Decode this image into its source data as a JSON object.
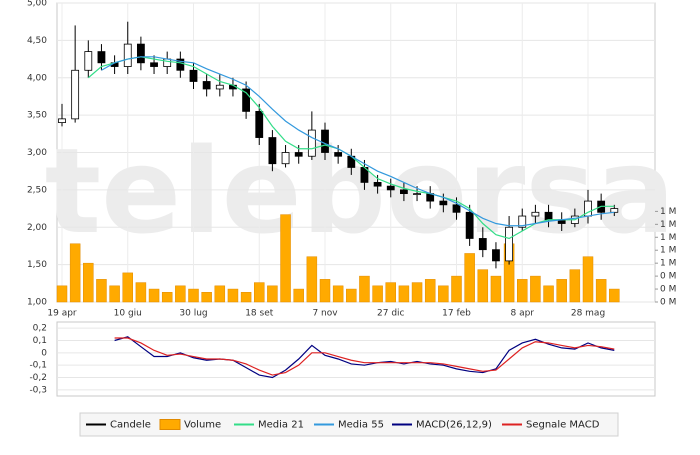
{
  "watermark": "teleborsa",
  "chart_data": [
    {
      "type": "candlestick",
      "categories": [
        "19 apr",
        null,
        null,
        null,
        null,
        "10 giu",
        null,
        null,
        null,
        null,
        "30 lug",
        null,
        null,
        null,
        null,
        "18 set",
        null,
        null,
        null,
        null,
        "7 nov",
        null,
        null,
        null,
        null,
        "27 dic",
        null,
        null,
        null,
        null,
        "17 feb",
        null,
        null,
        null,
        null,
        "8 apr",
        null,
        null,
        null,
        null,
        "28 mag",
        null,
        null
      ],
      "ohlc": {
        "name": "Candele",
        "color": "#000000",
        "open": [
          3.4,
          3.45,
          4.1,
          4.35,
          4.2,
          4.15,
          4.45,
          4.2,
          4.15,
          4.25,
          4.1,
          3.95,
          3.85,
          3.9,
          3.85,
          3.55,
          3.2,
          2.85,
          3.0,
          2.95,
          3.3,
          3.0,
          2.95,
          2.8,
          2.6,
          2.55,
          2.5,
          2.45,
          2.45,
          2.35,
          2.3,
          2.2,
          1.85,
          1.7,
          1.55,
          2.0,
          2.15,
          2.2,
          2.1,
          2.05,
          2.15,
          2.35,
          2.2
        ],
        "high": [
          3.65,
          4.7,
          4.5,
          4.45,
          4.3,
          4.75,
          4.55,
          4.3,
          4.35,
          4.35,
          4.2,
          4.05,
          4.05,
          4.0,
          3.95,
          3.65,
          3.3,
          3.1,
          3.1,
          3.55,
          3.4,
          3.1,
          3.05,
          2.9,
          2.7,
          2.65,
          2.6,
          2.55,
          2.55,
          2.45,
          2.4,
          2.3,
          2.0,
          1.8,
          2.15,
          2.25,
          2.3,
          2.3,
          2.2,
          2.25,
          2.5,
          2.45,
          2.3
        ],
        "low": [
          3.35,
          3.4,
          4.0,
          4.1,
          4.05,
          4.05,
          4.1,
          4.05,
          4.05,
          4.0,
          3.85,
          3.75,
          3.75,
          3.75,
          3.45,
          3.1,
          2.75,
          2.8,
          2.85,
          2.9,
          2.9,
          2.85,
          2.7,
          2.5,
          2.45,
          2.4,
          2.35,
          2.35,
          2.25,
          2.2,
          2.1,
          1.75,
          1.6,
          1.45,
          1.5,
          1.95,
          2.05,
          2.0,
          1.95,
          2.0,
          2.05,
          2.1,
          2.15
        ],
        "close": [
          3.45,
          4.1,
          4.35,
          4.2,
          4.15,
          4.45,
          4.2,
          4.15,
          4.25,
          4.1,
          3.95,
          3.85,
          3.9,
          3.85,
          3.55,
          3.2,
          2.85,
          3.0,
          2.95,
          3.3,
          3.0,
          2.95,
          2.8,
          2.6,
          2.55,
          2.5,
          2.45,
          2.45,
          2.35,
          2.3,
          2.2,
          1.85,
          1.7,
          1.55,
          2.0,
          2.15,
          2.2,
          2.1,
          2.05,
          2.15,
          2.35,
          2.2,
          2.25
        ]
      },
      "series": [
        {
          "name": "Volume",
          "type": "bar",
          "axis": "y2",
          "color": "#ffaa00",
          "values": [
            250000,
            900000,
            600000,
            350000,
            250000,
            450000,
            300000,
            200000,
            150000,
            250000,
            200000,
            150000,
            250000,
            200000,
            150000,
            300000,
            250000,
            1350000,
            200000,
            700000,
            350000,
            250000,
            200000,
            400000,
            250000,
            300000,
            250000,
            300000,
            350000,
            250000,
            400000,
            750000,
            500000,
            400000,
            900000,
            350000,
            400000,
            250000,
            350000,
            500000,
            700000,
            350000,
            200000
          ]
        },
        {
          "name": "Media 21",
          "type": "line",
          "color": "#33dd88",
          "values": [
            null,
            null,
            4.0,
            4.15,
            4.2,
            4.25,
            4.28,
            4.25,
            4.22,
            4.2,
            4.15,
            4.05,
            3.95,
            3.9,
            3.8,
            3.6,
            3.35,
            3.15,
            3.05,
            3.05,
            3.1,
            3.05,
            2.95,
            2.8,
            2.65,
            2.58,
            2.52,
            2.48,
            2.45,
            2.4,
            2.35,
            2.25,
            2.05,
            1.9,
            1.85,
            1.95,
            2.05,
            2.1,
            2.1,
            2.1,
            2.2,
            2.28,
            2.28
          ]
        },
        {
          "name": "Media 55",
          "type": "line",
          "color": "#3399dd",
          "values": [
            null,
            null,
            null,
            4.1,
            4.2,
            4.25,
            4.28,
            4.28,
            4.25,
            4.22,
            4.2,
            4.12,
            4.05,
            3.98,
            3.9,
            3.75,
            3.58,
            3.42,
            3.3,
            3.2,
            3.12,
            3.05,
            2.95,
            2.85,
            2.75,
            2.68,
            2.6,
            2.52,
            2.45,
            2.4,
            2.32,
            2.22,
            2.12,
            2.05,
            2.02,
            2.02,
            2.05,
            2.08,
            2.1,
            2.12,
            2.15,
            2.18,
            2.2
          ]
        }
      ],
      "ylim": [
        1,
        5
      ],
      "yticks": [
        {
          "value": 5,
          "label": "5,00"
        },
        {
          "value": 4.5,
          "label": "4,50"
        },
        {
          "value": 4,
          "label": "4,00"
        },
        {
          "value": 3.5,
          "label": "3,50"
        },
        {
          "value": 3,
          "label": "3,00"
        },
        {
          "value": 2.5,
          "label": "2,50"
        },
        {
          "value": 2,
          "label": "2,00"
        },
        {
          "value": 1.5,
          "label": "1,50"
        },
        {
          "value": 1,
          "label": "1,00"
        }
      ],
      "y2lim": [
        0,
        4620000
      ],
      "y2ticks": [
        {
          "value": 1400000,
          "label": "1 M"
        },
        {
          "value": 1200000,
          "label": "1 M"
        },
        {
          "value": 1000000,
          "label": "1 M"
        },
        {
          "value": 800000,
          "label": "1 M"
        },
        {
          "value": 600000,
          "label": "1 M"
        },
        {
          "value": 400000,
          "label": "0 M"
        },
        {
          "value": 200000,
          "label": "0 M"
        },
        {
          "value": 0,
          "label": "0 M"
        }
      ],
      "grid": true
    },
    {
      "type": "line",
      "series": [
        {
          "name": "MACD(26,12,9)",
          "color": "#000080",
          "values": [
            null,
            null,
            null,
            null,
            0.1,
            0.13,
            0.05,
            -0.03,
            -0.03,
            0.0,
            -0.04,
            -0.06,
            -0.05,
            -0.06,
            -0.12,
            -0.18,
            -0.2,
            -0.14,
            -0.05,
            0.06,
            -0.02,
            -0.05,
            -0.09,
            -0.1,
            -0.08,
            -0.07,
            -0.09,
            -0.07,
            -0.09,
            -0.1,
            -0.13,
            -0.15,
            -0.16,
            -0.13,
            0.02,
            0.08,
            0.11,
            0.07,
            0.04,
            0.03,
            0.08,
            0.04,
            0.02
          ]
        },
        {
          "name": "Segnale MACD",
          "color": "#dd2222",
          "values": [
            null,
            null,
            null,
            null,
            0.12,
            0.12,
            0.08,
            0.02,
            -0.02,
            -0.01,
            -0.03,
            -0.05,
            -0.05,
            -0.06,
            -0.09,
            -0.14,
            -0.18,
            -0.16,
            -0.1,
            0.0,
            0.0,
            -0.03,
            -0.06,
            -0.08,
            -0.08,
            -0.08,
            -0.08,
            -0.08,
            -0.08,
            -0.09,
            -0.11,
            -0.13,
            -0.15,
            -0.14,
            -0.05,
            0.04,
            0.09,
            0.08,
            0.06,
            0.04,
            0.06,
            0.05,
            0.03
          ]
        }
      ],
      "ylim": [
        -0.35,
        0.25
      ],
      "yticks": [
        {
          "value": 0.2,
          "label": "0,2"
        },
        {
          "value": 0.1,
          "label": "0,1"
        },
        0,
        {
          "value": -0.1,
          "label": "-0,1"
        },
        {
          "value": -0.2,
          "label": "-0,2"
        },
        {
          "value": -0.3,
          "label": "-0,3"
        }
      ],
      "grid": true
    }
  ]
}
